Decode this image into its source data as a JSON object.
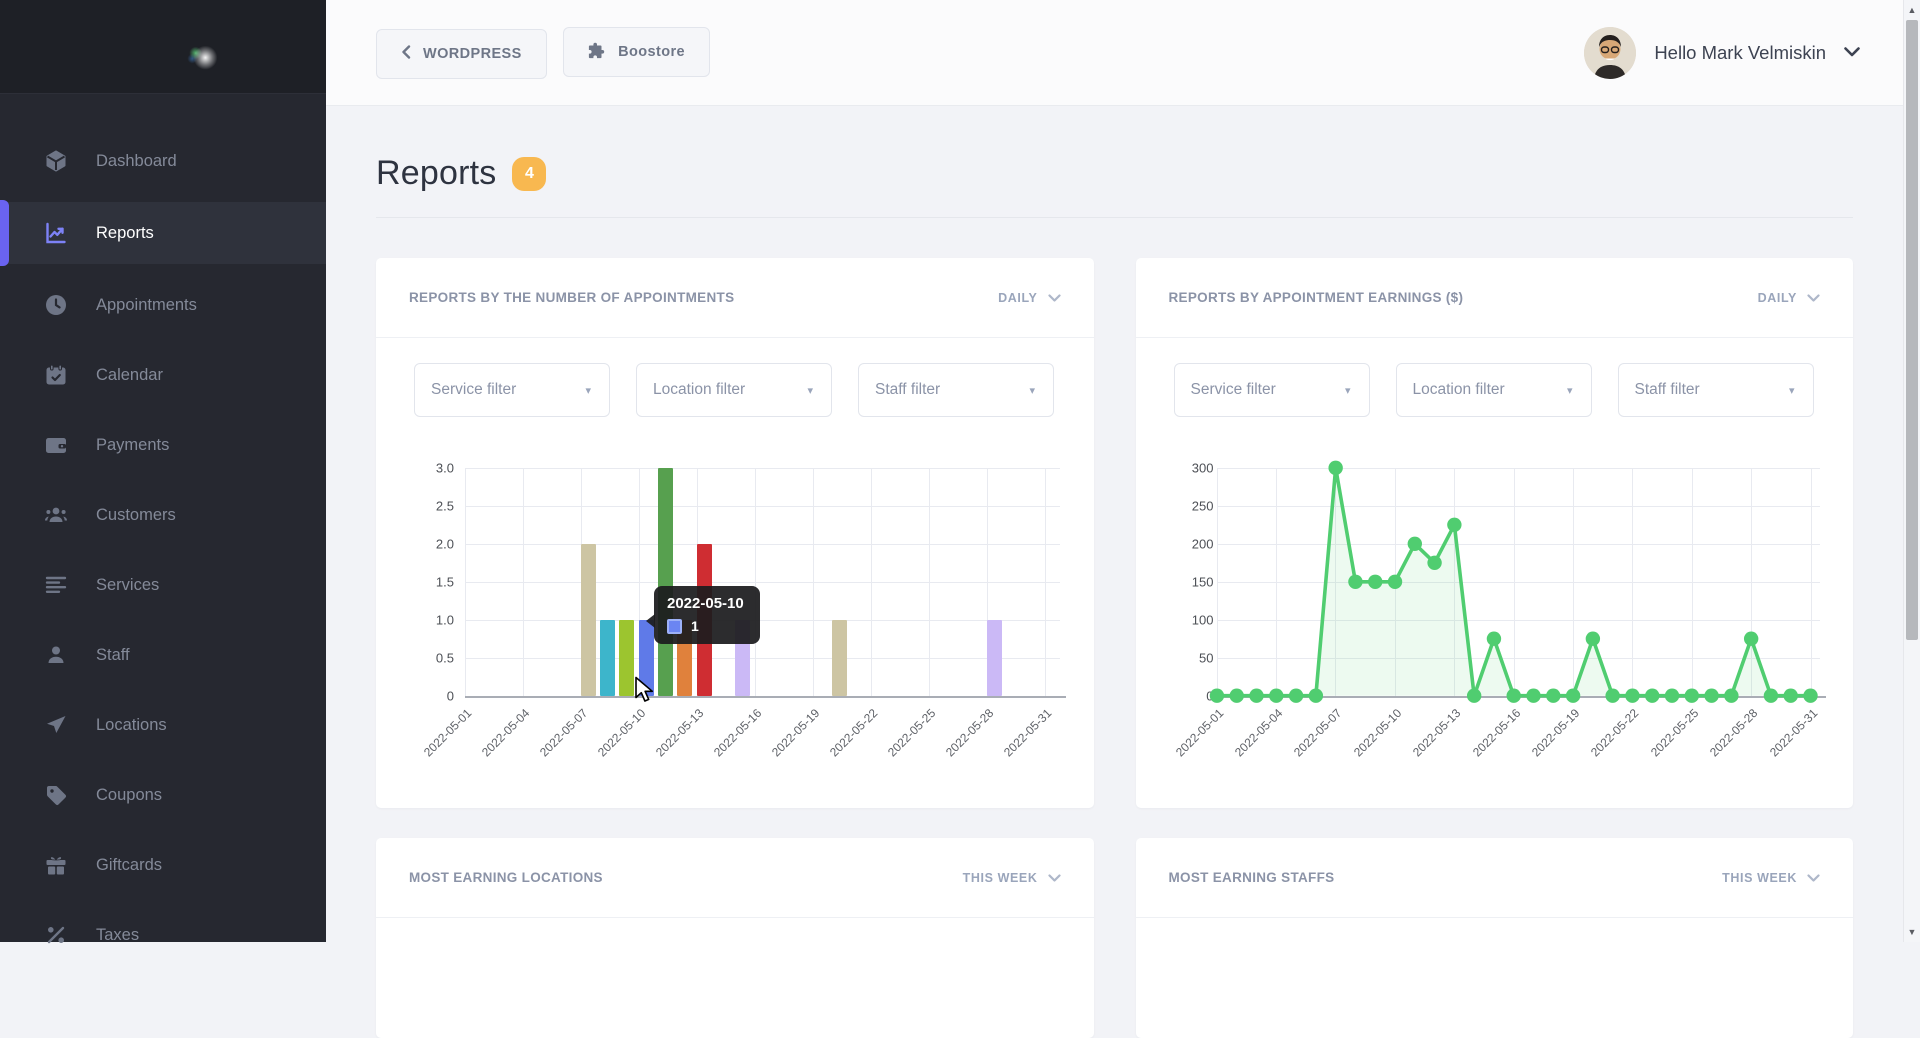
{
  "sidebar": {
    "items": [
      {
        "label": "Dashboard",
        "icon": "dashboard-icon",
        "active": false
      },
      {
        "label": "Reports",
        "icon": "reports-icon",
        "active": true
      },
      {
        "label": "Appointments",
        "icon": "appointments-icon",
        "active": false
      },
      {
        "label": "Calendar",
        "icon": "calendar-icon",
        "active": false
      },
      {
        "label": "Payments",
        "icon": "payments-icon",
        "active": false
      },
      {
        "label": "Customers",
        "icon": "customers-icon",
        "active": false
      },
      {
        "label": "Services",
        "icon": "services-icon",
        "active": false
      },
      {
        "label": "Staff",
        "icon": "staff-icon",
        "active": false
      },
      {
        "label": "Locations",
        "icon": "locations-icon",
        "active": false
      },
      {
        "label": "Coupons",
        "icon": "coupons-icon",
        "active": false
      },
      {
        "label": "Giftcards",
        "icon": "giftcards-icon",
        "active": false
      },
      {
        "label": "Taxes",
        "icon": "taxes-icon",
        "active": false
      }
    ]
  },
  "topbar": {
    "back_button": "WORDPRESS",
    "boostore_button": "Boostore",
    "greeting": "Hello Mark Velmiskin"
  },
  "page": {
    "title": "Reports",
    "badge": "4"
  },
  "filters": [
    "Service filter",
    "Location filter",
    "Staff filter"
  ],
  "cards": [
    {
      "title": "REPORTS BY THE NUMBER OF APPOINTMENTS",
      "period": "DAILY"
    },
    {
      "title": "REPORTS BY APPOINTMENT EARNINGS ($)",
      "period": "DAILY"
    },
    {
      "title": "MOST EARNING LOCATIONS",
      "period": "THIS WEEK"
    },
    {
      "title": "MOST EARNING STAFFS",
      "period": "THIS WEEK"
    }
  ],
  "tooltip": {
    "date": "2022-05-10",
    "value": "1",
    "swatch_color": "#6b85f2"
  },
  "colors": {
    "accent_purple": "#6a63f0",
    "badge_orange": "#f8b850",
    "sidebar_bg": "#262830",
    "card_bg": "#ffffff",
    "page_bg": "#f2f3f7"
  },
  "chart_data": [
    {
      "type": "bar",
      "title": "REPORTS BY THE NUMBER OF APPOINTMENTS",
      "period": "DAILY",
      "xlabel": "",
      "ylabel": "",
      "ylim": [
        0,
        3
      ],
      "y_ticks": [
        "3.0",
        "2.5",
        "2.0",
        "1.5",
        "1.0",
        "0.5",
        "0"
      ],
      "x_ticks": [
        "2022-05-01",
        "2022-05-04",
        "2022-05-07",
        "2022-05-10",
        "2022-05-13",
        "2022-05-16",
        "2022-05-19",
        "2022-05-22",
        "2022-05-25",
        "2022-05-28",
        "2022-05-31"
      ],
      "grid": true,
      "bars": [
        {
          "date": "2022-05-07",
          "day": 7,
          "value": 2,
          "color": "#cdc5a3"
        },
        {
          "date": "2022-05-08",
          "day": 8,
          "value": 1,
          "color": "#3db5cb"
        },
        {
          "date": "2022-05-09",
          "day": 9,
          "value": 1,
          "color": "#9cc52f"
        },
        {
          "date": "2022-05-10",
          "day": 10,
          "value": 1,
          "color": "#5f7ae8",
          "hovered": true
        },
        {
          "date": "2022-05-11",
          "day": 11,
          "value": 3,
          "color": "#57a04f"
        },
        {
          "date": "2022-05-12",
          "day": 12,
          "value": 1,
          "color": "#e0813c"
        },
        {
          "date": "2022-05-13",
          "day": 13,
          "value": 2,
          "color": "#cf2d32"
        },
        {
          "date": "2022-05-15",
          "day": 15,
          "value": 1,
          "color": "#cbb9f6"
        },
        {
          "date": "2022-05-20",
          "day": 20,
          "value": 1,
          "color": "#cdc5a3"
        },
        {
          "date": "2022-05-28",
          "day": 28,
          "value": 1,
          "color": "#cbb9f6"
        }
      ]
    },
    {
      "type": "line",
      "title": "REPORTS BY APPOINTMENT EARNINGS ($)",
      "period": "DAILY",
      "xlabel": "",
      "ylabel": "",
      "ylim": [
        0,
        300
      ],
      "y_ticks": [
        "300",
        "250",
        "200",
        "150",
        "100",
        "50",
        "0"
      ],
      "x_ticks": [
        "2022-05-01",
        "2022-05-04",
        "2022-05-07",
        "2022-05-10",
        "2022-05-13",
        "2022-05-16",
        "2022-05-19",
        "2022-05-22",
        "2022-05-25",
        "2022-05-28",
        "2022-05-31"
      ],
      "grid": true,
      "line_color": "#50cd70",
      "fill_color": "rgba(80,205,112,0.10)",
      "days": [
        1,
        2,
        3,
        4,
        5,
        6,
        7,
        8,
        9,
        10,
        11,
        12,
        13,
        14,
        15,
        16,
        17,
        18,
        19,
        20,
        21,
        22,
        23,
        24,
        25,
        26,
        27,
        28,
        29,
        30,
        31
      ],
      "values": [
        0,
        0,
        0,
        0,
        0,
        0,
        300,
        150,
        150,
        150,
        200,
        175,
        225,
        0,
        75,
        0,
        0,
        0,
        0,
        75,
        0,
        0,
        0,
        0,
        0,
        0,
        0,
        75,
        0,
        0,
        0
      ]
    }
  ]
}
